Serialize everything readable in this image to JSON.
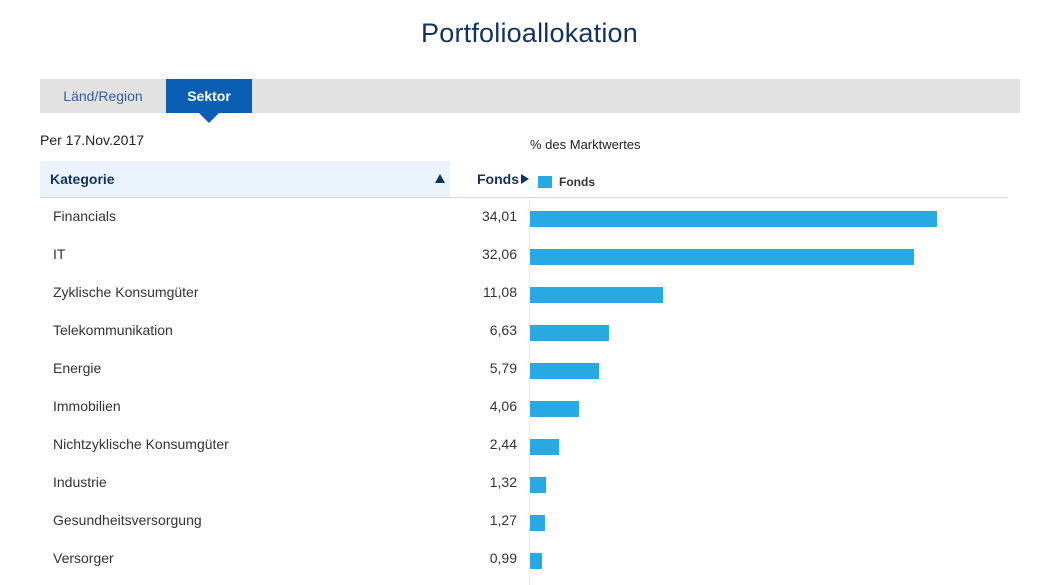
{
  "title": "Portfolioallokation",
  "tabs": [
    {
      "label": "Länd/Region",
      "active": false
    },
    {
      "label": "Sektor",
      "active": true
    }
  ],
  "as_of": "Per 17.Nov.2017",
  "measure_label": "% des Marktwertes",
  "table": {
    "category_header": "Kategorie",
    "value_header": "Fonds",
    "legend_label": "Fonds",
    "sort": "ascending"
  },
  "colors": {
    "bar": "#29a9e1",
    "active_tab": "#0a5fb4",
    "title": "#15325f",
    "tabbar": "#e2e2e2",
    "header_bg": "#eaf3fc"
  },
  "chart_data": {
    "type": "bar",
    "orientation": "horizontal",
    "categories": [
      "Financials",
      "IT",
      "Zyklische Konsumgüter",
      "Telekommunikation",
      "Energie",
      "Immobilien",
      "Nichtzyklische Konsumgüter",
      "Industrie",
      "Gesundheitsversorgung",
      "Versorger"
    ],
    "values": [
      34.01,
      32.06,
      11.08,
      6.63,
      5.79,
      4.06,
      2.44,
      1.32,
      1.27,
      0.99
    ],
    "value_labels": [
      "34,01",
      "32,06",
      "11,08",
      "6,63",
      "5,79",
      "4,06",
      "2,44",
      "1,32",
      "1,27",
      "0,99"
    ],
    "series": [
      {
        "name": "Fonds"
      }
    ],
    "xlabel": "% des Marktwertes",
    "xlim": [
      0,
      40
    ],
    "grid": false,
    "legend": "top-left"
  }
}
